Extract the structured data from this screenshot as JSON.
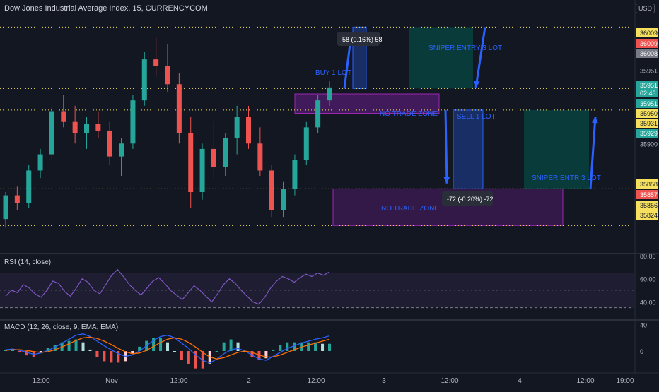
{
  "header": {
    "title": "Dow Jones Industrial Average Index, 15, CURRENCYCOM",
    "currency": "USD"
  },
  "colors": {
    "background": "#131722",
    "up": "#26a69a",
    "down": "#ef5350",
    "level_line": "#f6e05e",
    "annotation": "#2962ff",
    "zone_fill": "#7b1fa2",
    "rsi_line": "#7e57c2",
    "macd_line": "#2962ff",
    "signal_line": "#ff6d00"
  },
  "chart_data": [
    {
      "type": "candlestick",
      "title": "Dow Jones Industrial Average Index, 15, CURRENCYCOM",
      "ylim": [
        35800,
        36020
      ],
      "y_ticks": [
        "35951",
        "35900"
      ],
      "x_ticks": [
        "12:00",
        "Nov",
        "12:00",
        "2",
        "12:00",
        "3",
        "12:00",
        "4",
        "12:00",
        "19:00"
      ],
      "candles": [
        [
          35830,
          35855,
          35822,
          35852
        ],
        [
          35852,
          35860,
          35838,
          35845
        ],
        [
          35845,
          35880,
          35840,
          35875
        ],
        [
          35875,
          35895,
          35868,
          35890
        ],
        [
          35890,
          35935,
          35885,
          35930
        ],
        [
          35930,
          35945,
          35915,
          35920
        ],
        [
          35920,
          35935,
          35900,
          35910
        ],
        [
          35910,
          35925,
          35895,
          35918
        ],
        [
          35918,
          35930,
          35905,
          35912
        ],
        [
          35912,
          35920,
          35880,
          35888
        ],
        [
          35888,
          35905,
          35870,
          35900
        ],
        [
          35900,
          35945,
          35895,
          35940
        ],
        [
          35940,
          35985,
          35935,
          35978
        ],
        [
          35978,
          35998,
          35962,
          35972
        ],
        [
          35972,
          35992,
          35948,
          35955
        ],
        [
          35955,
          35965,
          35900,
          35910
        ],
        [
          35910,
          35925,
          35840,
          35855
        ],
        [
          35855,
          35900,
          35848,
          35895
        ],
        [
          35895,
          35920,
          35868,
          35878
        ],
        [
          35878,
          35910,
          35870,
          35905
        ],
        [
          35905,
          35935,
          35890,
          35925
        ],
        [
          35925,
          35935,
          35895,
          35900
        ],
        [
          35900,
          35915,
          35870,
          35875
        ],
        [
          35875,
          35880,
          35832,
          35838
        ],
        [
          35838,
          35865,
          35832,
          35858
        ],
        [
          35858,
          35890,
          35852,
          35885
        ],
        [
          35885,
          35920,
          35880,
          35915
        ],
        [
          35915,
          35945,
          35910,
          35940
        ],
        [
          35940,
          35958,
          35935,
          35952
        ]
      ],
      "levels": [
        {
          "label": "36009",
          "value": 36009,
          "color": "#f6e05e"
        },
        {
          "label": "36009",
          "value": 36009,
          "color": "#ef5350"
        },
        {
          "label": "36008",
          "value": 36008,
          "color": "#787b86"
        },
        {
          "label": "35951",
          "value": 35951,
          "color": "#26a69a"
        },
        {
          "label": "02:43",
          "value": 35942,
          "color": "#26a69a"
        },
        {
          "label": "35951",
          "value": 35935,
          "color": "#26a69a"
        },
        {
          "label": "35950",
          "value": 35930,
          "color": "#f6e05e"
        },
        {
          "label": "35931",
          "value": 35925,
          "color": "#f6e05e"
        },
        {
          "label": "35929",
          "value": 35919,
          "color": "#26a69a"
        },
        {
          "label": "35858",
          "value": 35858,
          "color": "#f6e05e"
        },
        {
          "label": "35857",
          "value": 35850,
          "color": "#ef5350"
        },
        {
          "label": "35856",
          "value": 35840,
          "color": "#f6e05e"
        },
        {
          "label": "35824",
          "value": 35824,
          "color": "#f6e05e"
        }
      ],
      "annotations": {
        "buy": "BUY 1 LOT",
        "sell": "SELL 1 LOT",
        "sniper_entry_top": "SNIPER ENTRY 3 LOT",
        "sniper_entry_bottom": "SNIPER ENTR 3 LOT",
        "no_trade_top": "NO TRADE ZONE",
        "no_trade_bottom": "NO TRADE ZONE",
        "measure_up": "58 (0.16%) 58",
        "measure_down": "-72 (-0.20%) -72"
      }
    },
    {
      "type": "line",
      "title": "RSI (14, close)",
      "ylim": [
        25,
        80
      ],
      "y_ticks": [
        "80.00",
        "60.00",
        "40.00"
      ],
      "bands": [
        65,
        35
      ],
      "values": [
        45,
        50,
        48,
        55,
        52,
        47,
        44,
        50,
        58,
        56,
        49,
        45,
        52,
        60,
        57,
        50,
        47,
        55,
        63,
        68,
        62,
        55,
        50,
        46,
        52,
        58,
        61,
        56,
        50,
        46,
        42,
        48,
        54,
        50,
        45,
        40,
        47,
        55,
        60,
        56,
        50,
        45,
        40,
        38,
        44,
        52,
        58,
        62,
        60,
        57,
        61,
        64,
        62,
        65,
        63,
        66
      ]
    },
    {
      "type": "bar",
      "title": "MACD (12, 26, close, 9, EMA, EMA)",
      "ylim": [
        -30,
        45
      ],
      "y_ticks": [
        "40",
        "0"
      ],
      "macd": [
        2,
        3,
        1,
        -2,
        -5,
        -3,
        1,
        6,
        12,
        18,
        24,
        26,
        22,
        15,
        8,
        2,
        -4,
        -8,
        -6,
        0,
        8,
        16,
        22,
        24,
        20,
        12,
        4,
        -6,
        -14,
        -18,
        -12,
        -4,
        2,
        4,
        0,
        -6,
        -12,
        -14,
        -8,
        -2,
        4,
        8,
        12,
        15,
        18,
        20,
        23
      ],
      "signal": [
        1,
        2,
        2,
        1,
        -1,
        -2,
        -1,
        2,
        6,
        11,
        16,
        20,
        21,
        19,
        15,
        10,
        4,
        -1,
        -4,
        -3,
        1,
        7,
        13,
        18,
        20,
        18,
        13,
        6,
        -2,
        -9,
        -12,
        -10,
        -6,
        -2,
        0,
        -2,
        -6,
        -9,
        -9,
        -6,
        -2,
        2,
        6,
        9,
        12,
        15,
        18
      ]
    }
  ]
}
